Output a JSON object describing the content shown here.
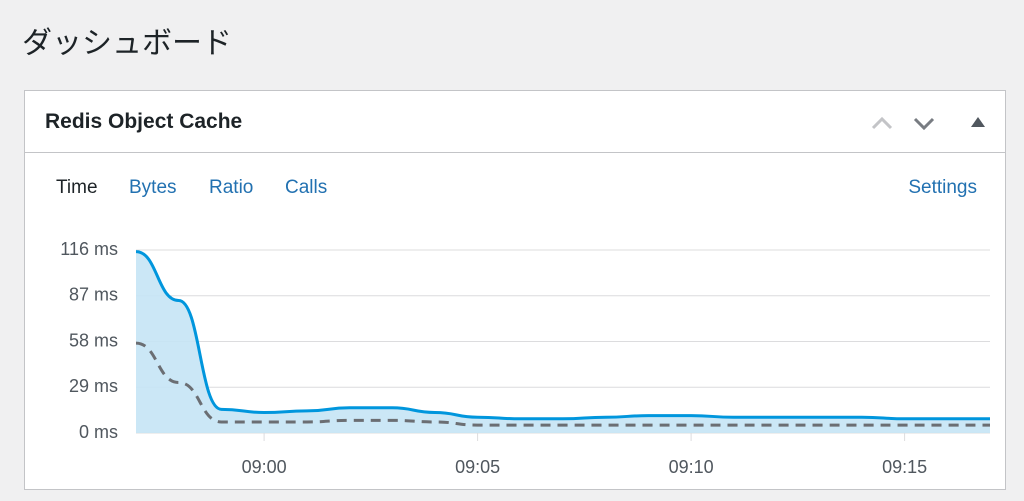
{
  "page": {
    "title": "ダッシュボード"
  },
  "widget": {
    "title": "Redis Object Cache",
    "tabs": [
      "Time",
      "Bytes",
      "Ratio",
      "Calls"
    ],
    "settings": "Settings"
  },
  "chart_data": {
    "type": "area-line",
    "x": [
      "08:57",
      "08:58",
      "08:59",
      "09:00",
      "09:01",
      "09:02",
      "09:03",
      "09:04",
      "09:05",
      "09:06",
      "09:07",
      "09:08",
      "09:09",
      "09:10",
      "09:11",
      "09:12",
      "09:13",
      "09:14",
      "09:15",
      "09:16",
      "09:17"
    ],
    "series": [
      {
        "color": "#0096dd",
        "fill": "#c5e4f5",
        "style": "solid",
        "values": [
          115,
          84,
          15,
          13,
          14,
          16,
          16,
          13,
          10,
          9,
          9,
          10,
          11,
          11,
          10,
          10,
          10,
          10,
          9,
          9,
          9
        ]
      },
      {
        "color": "#6b6e73",
        "style": "dashed",
        "values": [
          57,
          32,
          7,
          7,
          7,
          8,
          8,
          7,
          5,
          5,
          5,
          5,
          5,
          5,
          5,
          5,
          5,
          5,
          5,
          5,
          5
        ]
      }
    ],
    "xlim": [
      "08:57",
      "09:17"
    ],
    "xticks": [
      "09:00",
      "09:05",
      "09:10",
      "09:15"
    ],
    "ylim": [
      0,
      116
    ],
    "yticks": [
      {
        "value": 0,
        "label": "0 ms"
      },
      {
        "value": 29,
        "label": "29 ms"
      },
      {
        "value": 58,
        "label": "58 ms"
      },
      {
        "value": 87,
        "label": "87 ms"
      },
      {
        "value": 116,
        "label": "116 ms"
      }
    ],
    "grid": true
  }
}
